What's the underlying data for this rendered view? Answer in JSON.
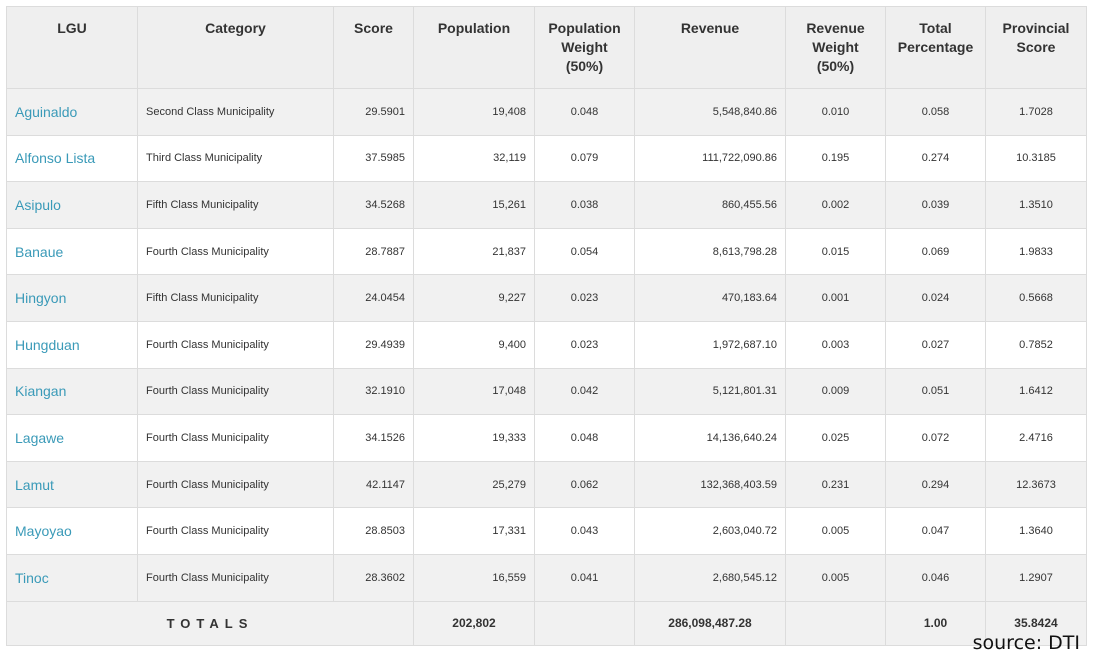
{
  "headers": {
    "lgu": "LGU",
    "category": "Category",
    "score": "Score",
    "population": "Population",
    "population_weight": [
      "Population",
      "Weight",
      "(50%)"
    ],
    "revenue": "Revenue",
    "revenue_weight": [
      "Revenue",
      "Weight",
      "(50%)"
    ],
    "total_percentage": [
      "Total",
      "Percentage"
    ],
    "provincial_score": [
      "Provincial",
      "Score"
    ]
  },
  "rows": [
    {
      "lgu": "Aguinaldo",
      "category": "Second Class Municipality",
      "score": "29.5901",
      "population": "19,408",
      "pop_weight": "0.048",
      "revenue": "5,548,840.86",
      "rev_weight": "0.010",
      "total_pct": "0.058",
      "prov_score": "1.7028"
    },
    {
      "lgu": "Alfonso Lista",
      "category": "Third Class Municipality",
      "score": "37.5985",
      "population": "32,119",
      "pop_weight": "0.079",
      "revenue": "111,722,090.86",
      "rev_weight": "0.195",
      "total_pct": "0.274",
      "prov_score": "10.3185"
    },
    {
      "lgu": "Asipulo",
      "category": "Fifth Class Municipality",
      "score": "34.5268",
      "population": "15,261",
      "pop_weight": "0.038",
      "revenue": "860,455.56",
      "rev_weight": "0.002",
      "total_pct": "0.039",
      "prov_score": "1.3510"
    },
    {
      "lgu": "Banaue",
      "category": "Fourth Class Municipality",
      "score": "28.7887",
      "population": "21,837",
      "pop_weight": "0.054",
      "revenue": "8,613,798.28",
      "rev_weight": "0.015",
      "total_pct": "0.069",
      "prov_score": "1.9833"
    },
    {
      "lgu": "Hingyon",
      "category": "Fifth Class Municipality",
      "score": "24.0454",
      "population": "9,227",
      "pop_weight": "0.023",
      "revenue": "470,183.64",
      "rev_weight": "0.001",
      "total_pct": "0.024",
      "prov_score": "0.5668"
    },
    {
      "lgu": "Hungduan",
      "category": "Fourth Class Municipality",
      "score": "29.4939",
      "population": "9,400",
      "pop_weight": "0.023",
      "revenue": "1,972,687.10",
      "rev_weight": "0.003",
      "total_pct": "0.027",
      "prov_score": "0.7852"
    },
    {
      "lgu": "Kiangan",
      "category": "Fourth Class Municipality",
      "score": "32.1910",
      "population": "17,048",
      "pop_weight": "0.042",
      "revenue": "5,121,801.31",
      "rev_weight": "0.009",
      "total_pct": "0.051",
      "prov_score": "1.6412"
    },
    {
      "lgu": "Lagawe",
      "category": "Fourth Class Municipality",
      "score": "34.1526",
      "population": "19,333",
      "pop_weight": "0.048",
      "revenue": "14,136,640.24",
      "rev_weight": "0.025",
      "total_pct": "0.072",
      "prov_score": "2.4716"
    },
    {
      "lgu": "Lamut",
      "category": "Fourth Class Municipality",
      "score": "42.1147",
      "population": "25,279",
      "pop_weight": "0.062",
      "revenue": "132,368,403.59",
      "rev_weight": "0.231",
      "total_pct": "0.294",
      "prov_score": "12.3673"
    },
    {
      "lgu": "Mayoyao",
      "category": "Fourth Class Municipality",
      "score": "28.8503",
      "population": "17,331",
      "pop_weight": "0.043",
      "revenue": "2,603,040.72",
      "rev_weight": "0.005",
      "total_pct": "0.047",
      "prov_score": "1.3640"
    },
    {
      "lgu": "Tinoc",
      "category": "Fourth Class Municipality",
      "score": "28.3602",
      "population": "16,559",
      "pop_weight": "0.041",
      "revenue": "2,680,545.12",
      "rev_weight": "0.005",
      "total_pct": "0.046",
      "prov_score": "1.2907"
    }
  ],
  "totals": {
    "label": "TOTALS",
    "population": "202,802",
    "revenue": "286,098,487.28",
    "total_pct": "1.00",
    "prov_score": "35.8424"
  },
  "source": "source: DTI",
  "colors": {
    "link": "#3a9ab8",
    "header_bg": "#efefef",
    "stripe_bg": "#f1f1f1",
    "border": "#dcdcdc"
  }
}
